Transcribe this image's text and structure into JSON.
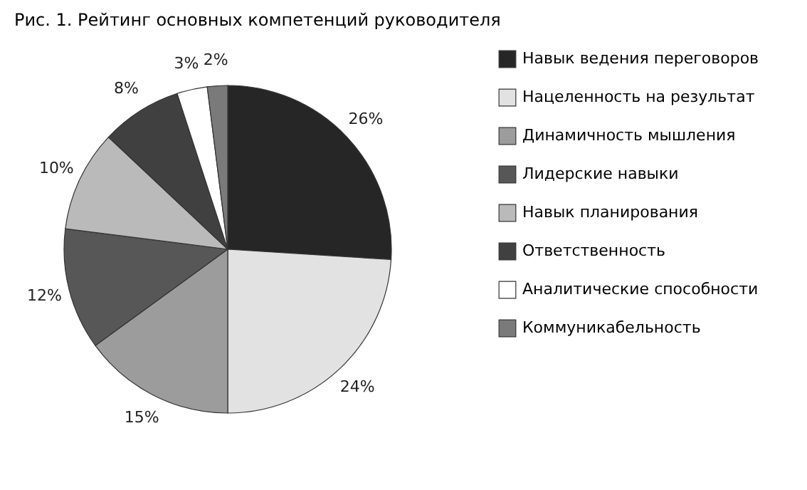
{
  "chart_data": {
    "type": "pie",
    "title": "Рис. 1. Рейтинг основных компетенций руководителя",
    "categories": [
      "Навык ведения переговоров",
      "Нацеленность на результат",
      "Динамичность мышления",
      "Лидерские навыки",
      "Навык планирования",
      "Ответственность",
      "Аналитические способности",
      "Коммуникабельность"
    ],
    "values": [
      26,
      24,
      15,
      12,
      10,
      8,
      3,
      2
    ],
    "value_labels": [
      "26%",
      "24%",
      "15%",
      "12%",
      "10%",
      "8%",
      "3%",
      "2%"
    ],
    "colors": [
      "#262626",
      "#e2e2e2",
      "#9c9c9c",
      "#575757",
      "#bababa",
      "#404040",
      "#ffffff",
      "#7a7a7a"
    ],
    "legend": "right"
  }
}
